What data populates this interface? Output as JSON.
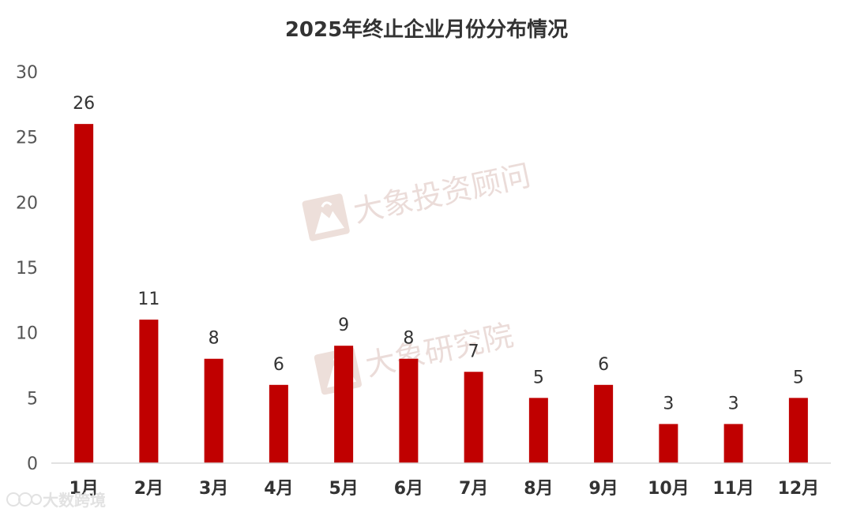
{
  "chart_data": {
    "type": "bar",
    "title": "2025年终止企业月份分布情况",
    "categories": [
      "1月",
      "2月",
      "3月",
      "4月",
      "5月",
      "6月",
      "7月",
      "8月",
      "9月",
      "10月",
      "11月",
      "12月"
    ],
    "values": [
      26,
      11,
      8,
      6,
      9,
      8,
      7,
      5,
      6,
      3,
      3,
      5
    ],
    "ylim": [
      0,
      30
    ],
    "yticks": [
      0,
      5,
      10,
      15,
      20,
      25,
      30
    ],
    "xlabel": "",
    "ylabel": "",
    "grid": false,
    "legend": "none",
    "bar_color": "#c00000"
  },
  "watermarks": {
    "primary": "大象投资顾问",
    "secondary": "大象研究院",
    "corner": "大数跨境",
    "corner_icon": "dashuju-logo-icon",
    "icon": "elephant-logo-icon"
  }
}
